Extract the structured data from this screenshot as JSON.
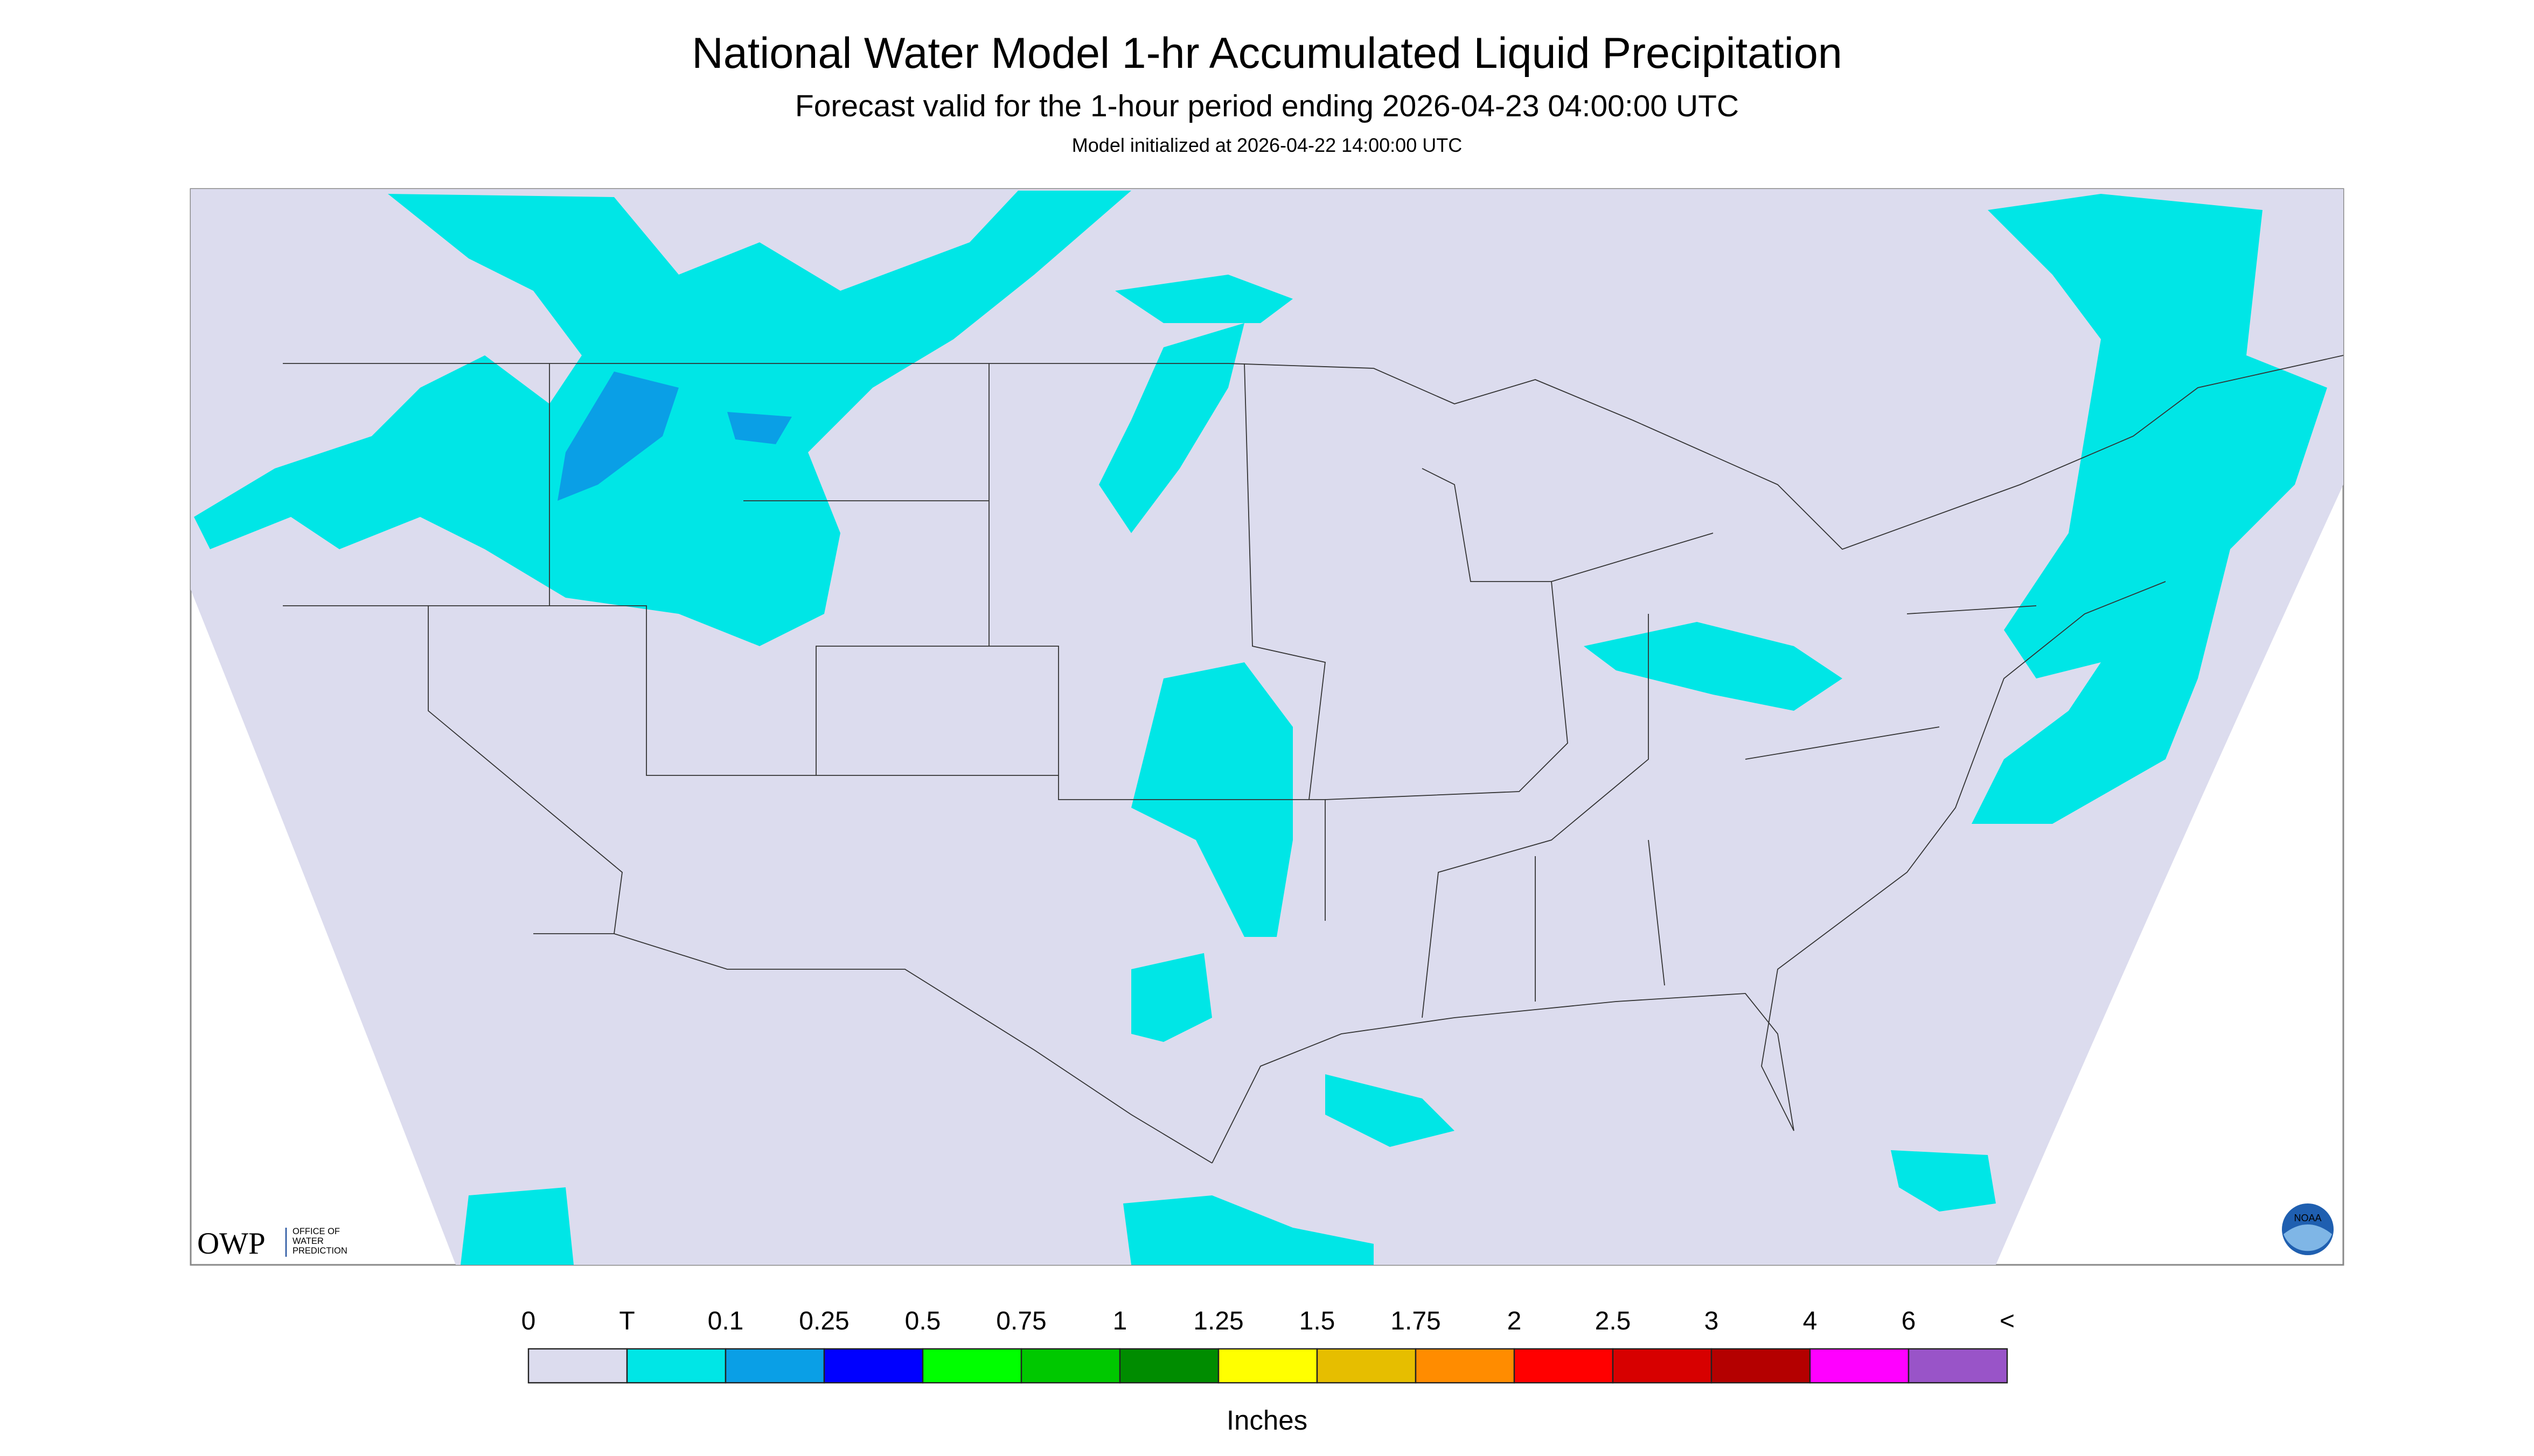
{
  "header": {
    "title": "National Water Model 1-hr Accumulated Liquid Precipitation",
    "subtitle": "Forecast valid for the 1-hour period ending 2026-04-23 04:00:00 UTC",
    "note": "Model initialized at 2026-04-22 14:00:00 UTC"
  },
  "logos": {
    "owp": "OWP",
    "owp_name": [
      "OFFICE OF",
      "WATER",
      "PREDICTION"
    ],
    "noaa": "NOAA"
  },
  "legend": {
    "labels": [
      "0",
      "T",
      "0.1",
      "0.25",
      "0.5",
      "0.75",
      "1",
      "1.25",
      "1.5",
      "1.75",
      "2",
      "2.5",
      "3",
      "4",
      "6",
      "<"
    ],
    "colors": [
      "#dcdcee",
      "#00e6e6",
      "#0a9fe6",
      "#0000ff",
      "#00ff00",
      "#00c800",
      "#008c00",
      "#ffff00",
      "#e6be00",
      "#ff8c00",
      "#ff0000",
      "#d70000",
      "#b40000",
      "#ff00ff",
      "#9954c8"
    ],
    "unit": "Inches"
  }
}
